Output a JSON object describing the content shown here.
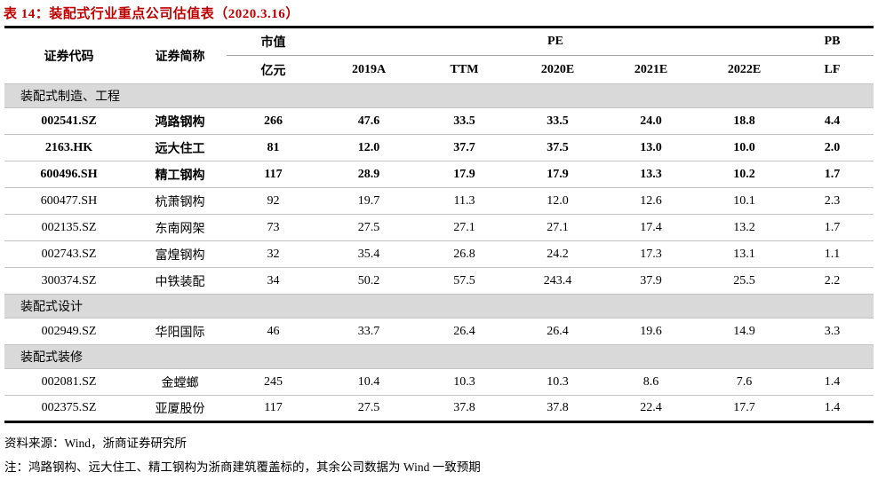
{
  "title": "表 14：装配式行业重点公司估值表（2020.3.16）",
  "colors": {
    "title_red": "#c00000",
    "section_bar_bg": "#d9d9d9",
    "row_divider_gray": "#c4c4c4",
    "rule_black": "#000000"
  },
  "table": {
    "header": {
      "code": "证券代码",
      "name": "证券简称",
      "mktcap_top": "市值",
      "mktcap_unit": "亿元",
      "pe_group": "PE",
      "pb_group": "PB",
      "pe_cols": [
        "2019A",
        "TTM",
        "2020E",
        "2021E",
        "2022E"
      ],
      "pb_col": "LF"
    },
    "sections": [
      {
        "label": "装配式制造、工程",
        "rows": [
          {
            "code": "002541.SZ",
            "name": "鸿路钢构",
            "values": [
              "266",
              "47.6",
              "33.5",
              "33.5",
              "24.0",
              "18.8",
              "4.4"
            ],
            "bold": true
          },
          {
            "code": "2163.HK",
            "name": "远大住工",
            "values": [
              "81",
              "12.0",
              "37.7",
              "37.5",
              "13.0",
              "10.0",
              "2.0"
            ],
            "bold": true
          },
          {
            "code": "600496.SH",
            "name": "精工钢构",
            "values": [
              "117",
              "28.9",
              "17.9",
              "17.9",
              "13.3",
              "10.2",
              "1.7"
            ],
            "bold": true
          },
          {
            "code": "600477.SH",
            "name": "杭萧钢构",
            "values": [
              "92",
              "19.7",
              "11.3",
              "12.0",
              "12.6",
              "10.1",
              "2.3"
            ],
            "bold": false
          },
          {
            "code": "002135.SZ",
            "name": "东南网架",
            "values": [
              "73",
              "27.5",
              "27.1",
              "27.1",
              "17.4",
              "13.2",
              "1.7"
            ],
            "bold": false
          },
          {
            "code": "002743.SZ",
            "name": "富煌钢构",
            "values": [
              "32",
              "35.4",
              "26.8",
              "24.2",
              "17.3",
              "13.1",
              "1.1"
            ],
            "bold": false
          },
          {
            "code": "300374.SZ",
            "name": "中铁装配",
            "values": [
              "34",
              "50.2",
              "57.5",
              "243.4",
              "37.9",
              "25.5",
              "2.2"
            ],
            "bold": false
          }
        ]
      },
      {
        "label": "装配式设计",
        "rows": [
          {
            "code": "002949.SZ",
            "name": "华阳国际",
            "values": [
              "46",
              "33.7",
              "26.4",
              "26.4",
              "19.6",
              "14.9",
              "3.3"
            ],
            "bold": false
          }
        ]
      },
      {
        "label": "装配式装修",
        "rows": [
          {
            "code": "002081.SZ",
            "name": "金螳螂",
            "values": [
              "245",
              "10.4",
              "10.3",
              "10.3",
              "8.6",
              "7.6",
              "1.4"
            ],
            "bold": false
          },
          {
            "code": "002375.SZ",
            "name": "亚厦股份",
            "values": [
              "117",
              "27.5",
              "37.8",
              "37.8",
              "22.4",
              "17.7",
              "1.4"
            ],
            "bold": false
          }
        ]
      }
    ]
  },
  "footer": {
    "source": "资料来源：Wind，浙商证券研究所",
    "note": "注：鸿路钢构、远大住工、精工钢构为浙商建筑覆盖标的，其余公司数据为 Wind 一致预期"
  }
}
